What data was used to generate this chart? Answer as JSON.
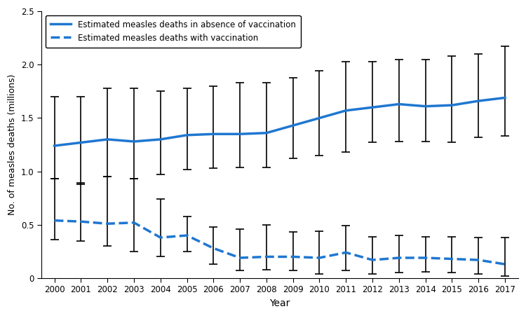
{
  "years": [
    2000,
    2001,
    2002,
    2003,
    2004,
    2005,
    2006,
    2007,
    2008,
    2009,
    2010,
    2011,
    2012,
    2013,
    2014,
    2015,
    2016,
    2017
  ],
  "no_vax_central": [
    1.24,
    1.27,
    1.3,
    1.28,
    1.3,
    1.34,
    1.35,
    1.35,
    1.36,
    1.43,
    1.5,
    1.57,
    1.6,
    1.63,
    1.61,
    1.62,
    1.66,
    1.69
  ],
  "no_vax_upper": [
    1.7,
    1.7,
    1.78,
    1.78,
    1.75,
    1.78,
    1.8,
    1.83,
    1.83,
    1.88,
    1.94,
    2.03,
    2.03,
    2.05,
    2.05,
    2.08,
    2.1,
    2.17
  ],
  "no_vax_lower": [
    0.93,
    0.88,
    0.95,
    0.93,
    0.97,
    1.02,
    1.03,
    1.04,
    1.04,
    1.12,
    1.15,
    1.18,
    1.27,
    1.28,
    1.28,
    1.27,
    1.32,
    1.33
  ],
  "vax_central": [
    0.54,
    0.53,
    0.51,
    0.52,
    0.38,
    0.4,
    0.28,
    0.19,
    0.2,
    0.2,
    0.19,
    0.24,
    0.17,
    0.19,
    0.19,
    0.18,
    0.17,
    0.13
  ],
  "vax_upper": [
    0.93,
    0.89,
    0.95,
    0.93,
    0.74,
    0.58,
    0.48,
    0.46,
    0.5,
    0.43,
    0.44,
    0.49,
    0.39,
    0.4,
    0.39,
    0.39,
    0.38,
    0.38
  ],
  "vax_lower": [
    0.36,
    0.35,
    0.3,
    0.25,
    0.2,
    0.25,
    0.13,
    0.07,
    0.08,
    0.07,
    0.04,
    0.07,
    0.04,
    0.05,
    0.06,
    0.05,
    0.04,
    0.02
  ],
  "line_color": "#1f77d0",
  "error_color": "black",
  "legend_labels": [
    "Estimated measles deaths in absence of vaccination",
    "Estimated measles deaths with vaccination"
  ],
  "xlabel": "Year",
  "ylabel": "No. of measles deaths (millions)",
  "ylim": [
    0,
    2.5
  ],
  "yticks": [
    0,
    0.5,
    1.0,
    1.5,
    2.0,
    2.5
  ]
}
